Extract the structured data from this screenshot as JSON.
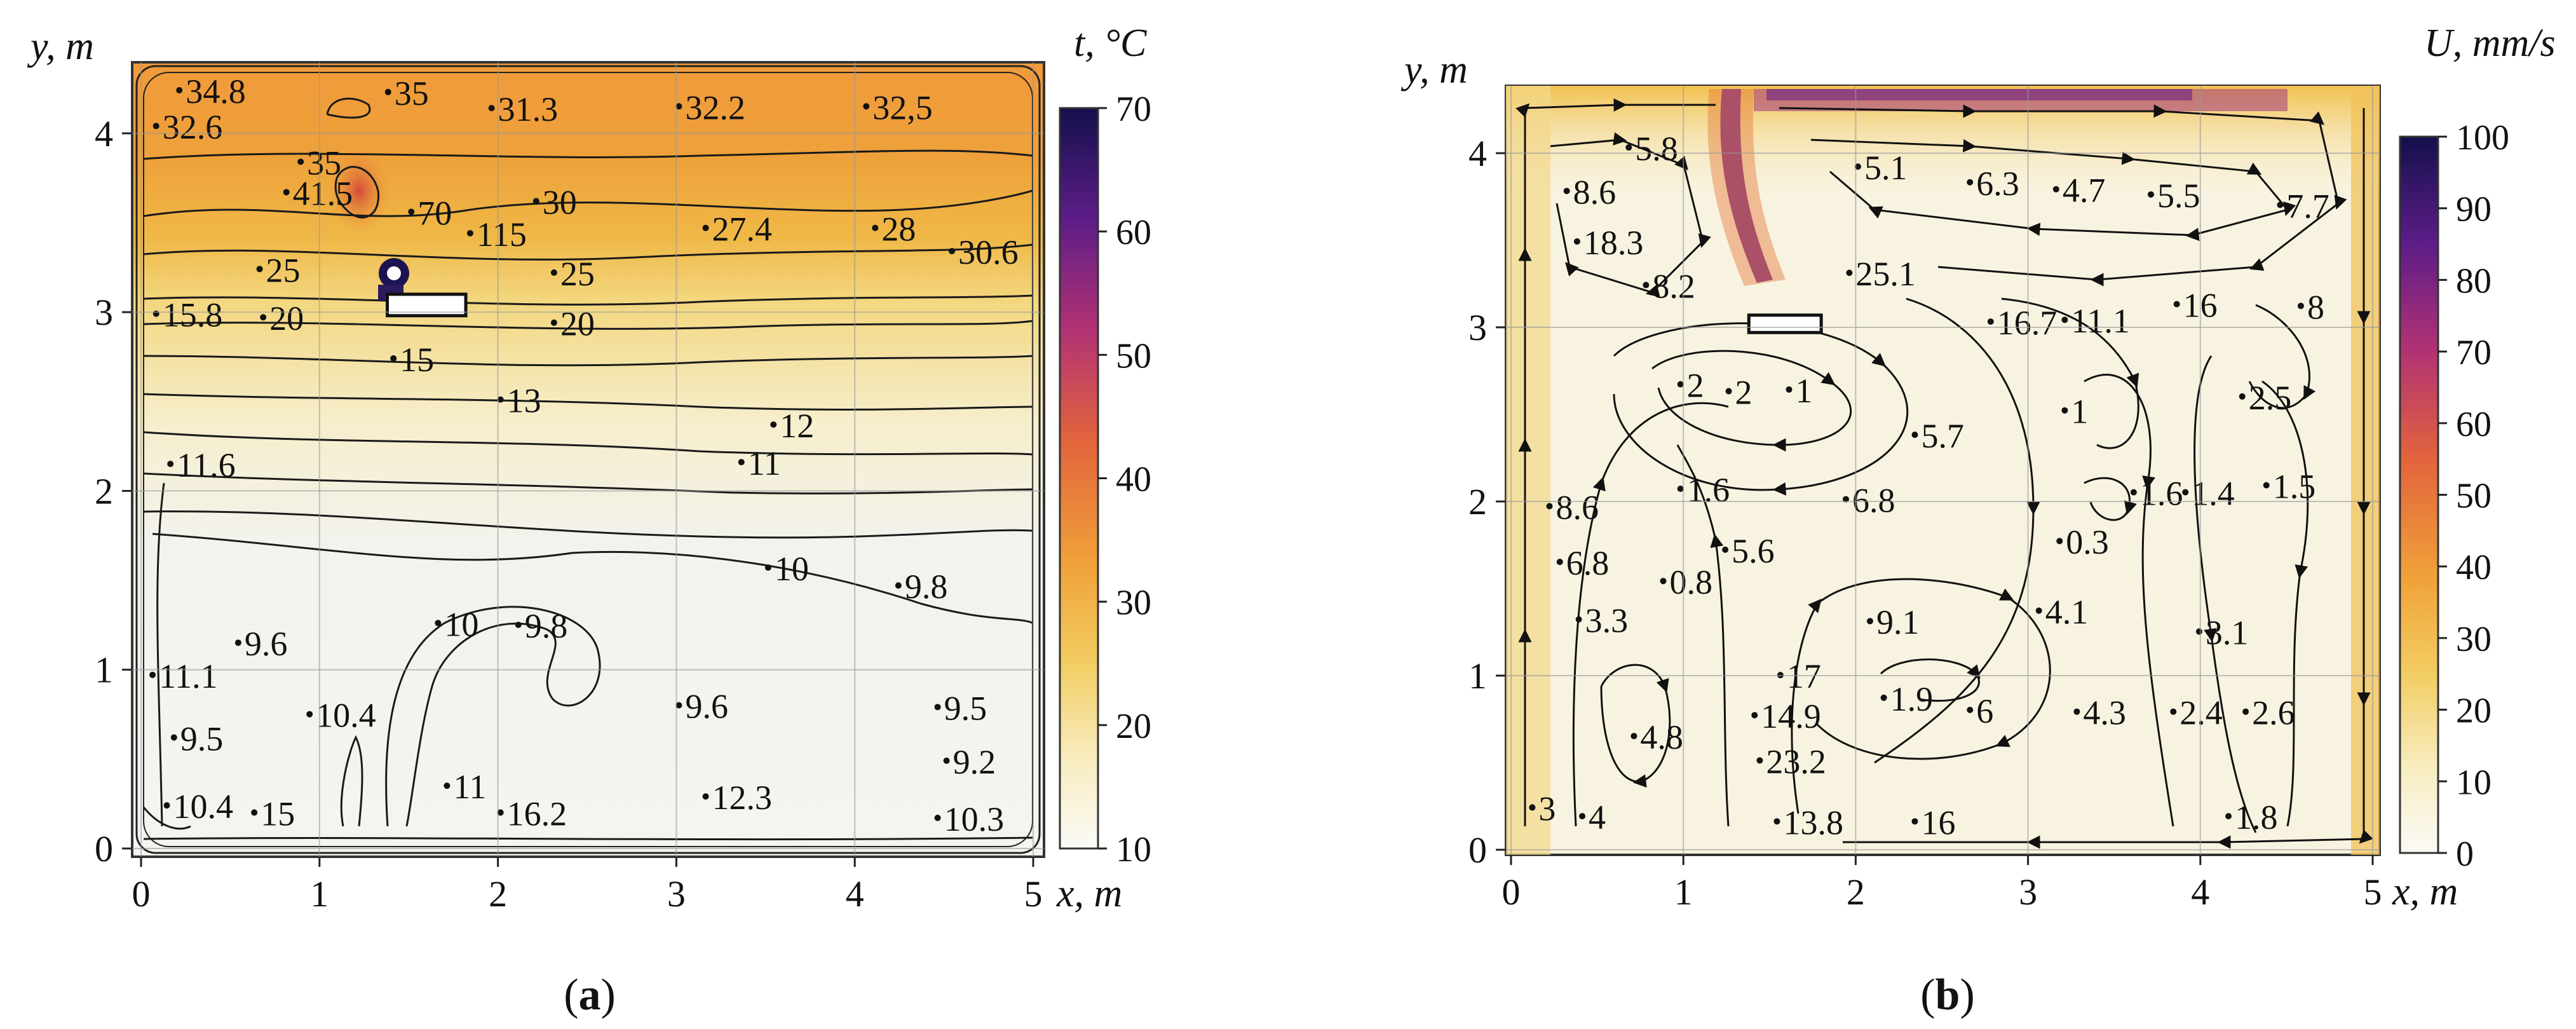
{
  "chart_data": [
    {
      "type": "heatmap",
      "panel_label": "a",
      "colorbar_title": "t, °C",
      "colorbar_ticks": [
        70,
        60,
        50,
        40,
        30,
        20,
        10
      ],
      "colorbar_range": [
        10,
        70
      ],
      "xlabel": "x, m",
      "ylabel": "y, m",
      "xticks": [
        0,
        1,
        2,
        3,
        4,
        5
      ],
      "yticks": [
        0,
        1,
        2,
        3,
        4
      ],
      "xlim": [
        -0.1,
        5.1
      ],
      "ylim": [
        -0.1,
        4.4
      ],
      "heat_source": {
        "x0": 1.38,
        "x1": 1.82,
        "y0": 2.98,
        "y1": 3.1
      },
      "annotations": [
        {
          "x": 0.25,
          "y": 4.17,
          "text": "34.8"
        },
        {
          "x": 0.12,
          "y": 3.97,
          "text": "32.6"
        },
        {
          "x": 1.42,
          "y": 4.16,
          "text": "35"
        },
        {
          "x": 2.0,
          "y": 4.07,
          "text": "31.3"
        },
        {
          "x": 3.05,
          "y": 4.08,
          "text": "32.2"
        },
        {
          "x": 4.1,
          "y": 4.08,
          "text": "32,5"
        },
        {
          "x": 0.93,
          "y": 3.77,
          "text": "35"
        },
        {
          "x": 0.85,
          "y": 3.6,
          "text": "41.5"
        },
        {
          "x": 1.55,
          "y": 3.49,
          "text": "70"
        },
        {
          "x": 2.25,
          "y": 3.55,
          "text": "30"
        },
        {
          "x": 1.88,
          "y": 3.37,
          "text": "115"
        },
        {
          "x": 3.2,
          "y": 3.4,
          "text": "27.4"
        },
        {
          "x": 4.15,
          "y": 3.4,
          "text": "28"
        },
        {
          "x": 4.58,
          "y": 3.27,
          "text": "30.6"
        },
        {
          "x": 0.7,
          "y": 3.17,
          "text": "25"
        },
        {
          "x": 2.35,
          "y": 3.15,
          "text": "25"
        },
        {
          "x": 0.12,
          "y": 2.92,
          "text": "15.8"
        },
        {
          "x": 0.72,
          "y": 2.9,
          "text": "20"
        },
        {
          "x": 2.35,
          "y": 2.87,
          "text": "20"
        },
        {
          "x": 1.45,
          "y": 2.67,
          "text": "15"
        },
        {
          "x": 2.05,
          "y": 2.44,
          "text": "13"
        },
        {
          "x": 3.58,
          "y": 2.3,
          "text": "12"
        },
        {
          "x": 3.4,
          "y": 2.09,
          "text": "11"
        },
        {
          "x": 0.2,
          "y": 2.08,
          "text": "11.6"
        },
        {
          "x": 3.55,
          "y": 1.5,
          "text": "10"
        },
        {
          "x": 4.28,
          "y": 1.4,
          "text": "9.8"
        },
        {
          "x": 0.58,
          "y": 1.08,
          "text": "9.6"
        },
        {
          "x": 1.7,
          "y": 1.19,
          "text": "10"
        },
        {
          "x": 2.15,
          "y": 1.18,
          "text": "9.8"
        },
        {
          "x": 0.1,
          "y": 0.9,
          "text": "11.1"
        },
        {
          "x": 3.05,
          "y": 0.73,
          "text": "9.6"
        },
        {
          "x": 0.98,
          "y": 0.68,
          "text": "10.4"
        },
        {
          "x": 4.5,
          "y": 0.72,
          "text": "9.5"
        },
        {
          "x": 0.22,
          "y": 0.55,
          "text": "9.5"
        },
        {
          "x": 4.55,
          "y": 0.42,
          "text": "9.2"
        },
        {
          "x": 1.75,
          "y": 0.28,
          "text": "11"
        },
        {
          "x": 3.2,
          "y": 0.22,
          "text": "12.3"
        },
        {
          "x": 0.18,
          "y": 0.17,
          "text": "10.4"
        },
        {
          "x": 0.67,
          "y": 0.13,
          "text": "15"
        },
        {
          "x": 2.05,
          "y": 0.13,
          "text": "16.2"
        },
        {
          "x": 4.5,
          "y": 0.1,
          "text": "10.3"
        }
      ]
    },
    {
      "type": "heatmap",
      "panel_label": "b",
      "colorbar_title": "U, mm/s",
      "colorbar_ticks": [
        100,
        90,
        80,
        70,
        60,
        50,
        40,
        30,
        20,
        10,
        0
      ],
      "colorbar_range": [
        0,
        100
      ],
      "xlabel": "x, m",
      "ylabel": "y, m",
      "xticks": [
        0,
        1,
        2,
        3,
        4,
        5
      ],
      "yticks": [
        0,
        1,
        2,
        3,
        4
      ],
      "xlim": [
        -0.1,
        5.1
      ],
      "ylim": [
        -0.1,
        4.4
      ],
      "heat_source": {
        "x0": 1.38,
        "x1": 1.8,
        "y0": 2.97,
        "y1": 3.07
      },
      "annotations": [
        {
          "x": 0.72,
          "y": 3.96,
          "text": "5.8"
        },
        {
          "x": 2.05,
          "y": 3.85,
          "text": "5.1"
        },
        {
          "x": 2.7,
          "y": 3.76,
          "text": "6.3"
        },
        {
          "x": 3.2,
          "y": 3.72,
          "text": "4.7"
        },
        {
          "x": 3.75,
          "y": 3.69,
          "text": "5.5"
        },
        {
          "x": 4.5,
          "y": 3.63,
          "text": "7.7"
        },
        {
          "x": 0.36,
          "y": 3.71,
          "text": "8.6"
        },
        {
          "x": 0.42,
          "y": 3.42,
          "text": "18.3"
        },
        {
          "x": 2.0,
          "y": 3.24,
          "text": "25.1"
        },
        {
          "x": 0.82,
          "y": 3.17,
          "text": "8.2"
        },
        {
          "x": 2.82,
          "y": 2.96,
          "text": "16.7"
        },
        {
          "x": 3.25,
          "y": 2.97,
          "text": "11.1"
        },
        {
          "x": 3.9,
          "y": 3.06,
          "text": "16"
        },
        {
          "x": 4.62,
          "y": 3.05,
          "text": "8"
        },
        {
          "x": 1.02,
          "y": 2.6,
          "text": "2"
        },
        {
          "x": 1.3,
          "y": 2.56,
          "text": "2"
        },
        {
          "x": 1.65,
          "y": 2.57,
          "text": "1"
        },
        {
          "x": 3.25,
          "y": 2.45,
          "text": "1"
        },
        {
          "x": 4.28,
          "y": 2.53,
          "text": "2.5"
        },
        {
          "x": 2.38,
          "y": 2.31,
          "text": "5.7"
        },
        {
          "x": 1.02,
          "y": 2.0,
          "text": "1.6"
        },
        {
          "x": 0.26,
          "y": 1.9,
          "text": "8.6"
        },
        {
          "x": 1.98,
          "y": 1.94,
          "text": "6.8"
        },
        {
          "x": 3.65,
          "y": 1.98,
          "text": "1.6"
        },
        {
          "x": 3.95,
          "y": 1.98,
          "text": "1.4"
        },
        {
          "x": 4.42,
          "y": 2.02,
          "text": "1.5"
        },
        {
          "x": 1.28,
          "y": 1.65,
          "text": "5.6"
        },
        {
          "x": 3.22,
          "y": 1.7,
          "text": "0.3"
        },
        {
          "x": 0.32,
          "y": 1.58,
          "text": "6.8"
        },
        {
          "x": 0.92,
          "y": 1.47,
          "text": "0.8"
        },
        {
          "x": 2.12,
          "y": 1.24,
          "text": "9.1"
        },
        {
          "x": 3.1,
          "y": 1.3,
          "text": "4.1"
        },
        {
          "x": 0.43,
          "y": 1.25,
          "text": "3.3"
        },
        {
          "x": 4.03,
          "y": 1.18,
          "text": "3.1"
        },
        {
          "x": 1.6,
          "y": 0.93,
          "text": "17"
        },
        {
          "x": 2.2,
          "y": 0.8,
          "text": "1.9"
        },
        {
          "x": 2.7,
          "y": 0.73,
          "text": "6"
        },
        {
          "x": 3.32,
          "y": 0.72,
          "text": "4.3"
        },
        {
          "x": 1.45,
          "y": 0.7,
          "text": "14.9"
        },
        {
          "x": 3.88,
          "y": 0.72,
          "text": "2.4"
        },
        {
          "x": 4.3,
          "y": 0.72,
          "text": "2.6"
        },
        {
          "x": 0.75,
          "y": 0.58,
          "text": "4.8"
        },
        {
          "x": 1.48,
          "y": 0.44,
          "text": "23.2"
        },
        {
          "x": 0.16,
          "y": 0.17,
          "text": "3"
        },
        {
          "x": 0.45,
          "y": 0.12,
          "text": "4"
        },
        {
          "x": 1.58,
          "y": 0.09,
          "text": "13.8"
        },
        {
          "x": 2.38,
          "y": 0.09,
          "text": "16"
        },
        {
          "x": 4.2,
          "y": 0.12,
          "text": "1.8"
        }
      ]
    }
  ]
}
